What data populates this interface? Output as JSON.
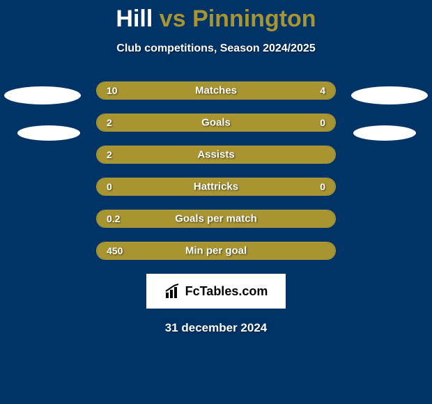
{
  "background_color": "#003366",
  "accent_color": "#a89532",
  "border_color": "#b09c35",
  "text_color": "#ffffff",
  "title": {
    "left_name": "Hill",
    "vs": "vs",
    "right_name": "Pinnington",
    "fontsize": 34
  },
  "subtitle": "Club competitions, Season 2024/2025",
  "bars": [
    {
      "label": "Matches",
      "left_value": "10",
      "right_value": "4",
      "left_width_pct": 67,
      "right_width_pct": 33
    },
    {
      "label": "Goals",
      "left_value": "2",
      "right_value": "0",
      "left_width_pct": 76,
      "right_width_pct": 24
    },
    {
      "label": "Assists",
      "left_value": "2",
      "right_value": "",
      "left_width_pct": 100,
      "right_width_pct": 0
    },
    {
      "label": "Hattricks",
      "left_value": "0",
      "right_value": "0",
      "left_width_pct": 49,
      "right_width_pct": 51
    },
    {
      "label": "Goals per match",
      "left_value": "0.2",
      "right_value": "",
      "left_width_pct": 100,
      "right_width_pct": 0
    },
    {
      "label": "Min per goal",
      "left_value": "450",
      "right_value": "",
      "left_width_pct": 100,
      "right_width_pct": 0
    }
  ],
  "logo": {
    "text": "FcTables.com"
  },
  "date": "31 december 2024"
}
